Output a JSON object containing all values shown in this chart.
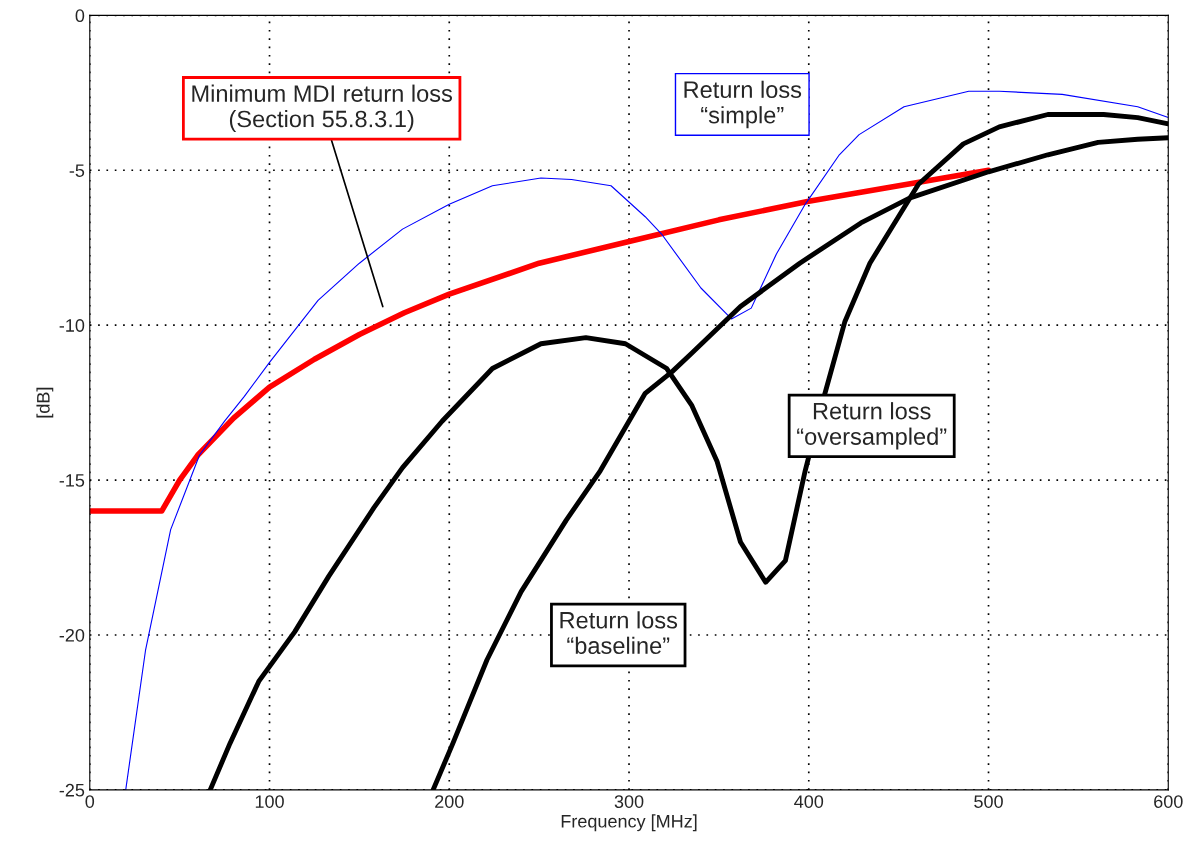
{
  "chart_data": {
    "type": "line",
    "xlabel": "Frequency [MHz]",
    "ylabel": "[dB]",
    "xlim": [
      0,
      600
    ],
    "ylim": [
      -25,
      0
    ],
    "xticks": [
      0,
      100,
      200,
      300,
      400,
      500,
      600
    ],
    "yticks": [
      -25,
      -20,
      -15,
      -10,
      -5,
      0
    ],
    "grid": true,
    "legend": false,
    "line_style": "solid",
    "marker": "none",
    "series": [
      {
        "name": "Minimum MDI return loss\n(Section 55.8.3.1)",
        "color": "#ff0000",
        "x": [
          0,
          40,
          50,
          60,
          80,
          100,
          125,
          150,
          175,
          200,
          250,
          300,
          350,
          400,
          450,
          500
        ],
        "values": [
          -16,
          -16,
          -15.0,
          -14.2,
          -13.0,
          -12.0,
          -11.1,
          -10.3,
          -9.6,
          -9.0,
          -8.0,
          -7.3,
          -6.6,
          -6.0,
          -5.5,
          -5.0
        ]
      },
      {
        "name": "Return loss\n“simple”",
        "color": "#0000ff",
        "x": [
          20,
          31,
          45,
          61,
          75,
          86,
          100,
          127,
          150,
          174,
          200,
          224,
          251,
          268,
          290,
          309,
          318,
          340,
          357,
          368,
          382,
          398,
          417,
          428,
          453,
          489,
          506,
          541,
          583,
          600
        ],
        "values": [
          -25,
          -20.5,
          -16.6,
          -14.2,
          -13.1,
          -12.3,
          -11.2,
          -9.2,
          -8.0,
          -6.9,
          -6.1,
          -5.5,
          -5.25,
          -5.3,
          -5.5,
          -6.5,
          -7.05,
          -8.8,
          -9.8,
          -9.45,
          -7.7,
          -6.1,
          -4.5,
          -3.85,
          -2.95,
          -2.45,
          -2.45,
          -2.55,
          -2.95,
          -3.3
        ]
      },
      {
        "name": "Return loss\n“baseline”",
        "color": "#000000",
        "x": [
          191,
          202,
          221,
          240,
          265,
          284,
          309,
          324,
          335,
          362,
          395,
          429,
          456,
          500,
          533,
          561,
          583,
          600
        ],
        "values": [
          -25,
          -23.5,
          -20.8,
          -18.6,
          -16.3,
          -14.7,
          -12.2,
          -11.5,
          -10.9,
          -9.4,
          -8.0,
          -6.7,
          -5.9,
          -5.05,
          -4.5,
          -4.1,
          -4.0,
          -3.95
        ]
      },
      {
        "name": "Return loss\n“oversampled”",
        "color": "#000000",
        "x": [
          67,
          78,
          94,
          114,
          133,
          158,
          174,
          196,
          224,
          251,
          276,
          298,
          321,
          335,
          349,
          362,
          376,
          387,
          398,
          409,
          420,
          434,
          461,
          486,
          506,
          533,
          564,
          583,
          600
        ],
        "values": [
          -25,
          -23.5,
          -21.5,
          -19.9,
          -18.1,
          -15.9,
          -14.6,
          -13.1,
          -11.4,
          -10.6,
          -10.4,
          -10.6,
          -11.4,
          -12.6,
          -14.4,
          -17.0,
          -18.3,
          -17.6,
          -14.7,
          -12.2,
          -9.9,
          -8.0,
          -5.45,
          -4.15,
          -3.6,
          -3.2,
          -3.2,
          -3.3,
          -3.5
        ]
      }
    ]
  }
}
